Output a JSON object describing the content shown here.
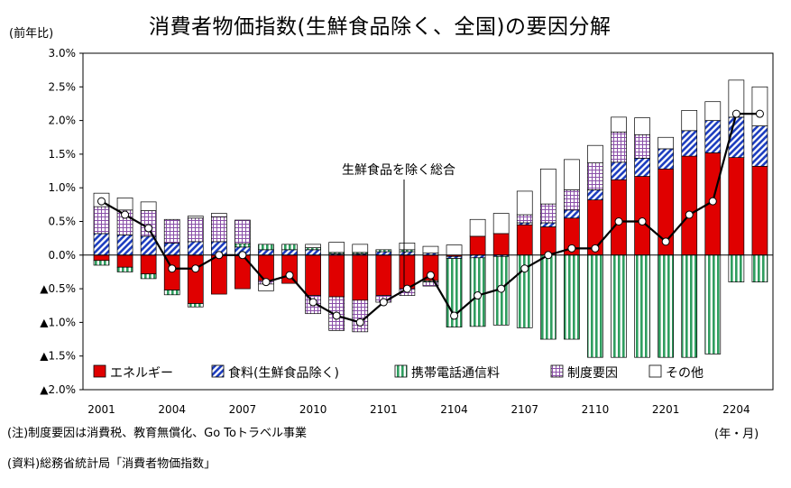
{
  "title": "消費者物価指数(生鮮食品除く、全国)の要因分解",
  "y_unit_label": "(前年比)",
  "x_unit_label": "(年・月)",
  "note": "(注)制度要因は消費税、教育無償化、Go Toトラベル事業",
  "source": "(資料)総務省統計局「消費者物価指数」",
  "annotation": "生鮮食品を除く総合",
  "colors": {
    "energy": "#e00000",
    "food": "#1f3fbf",
    "mobile": "#2f9e5f",
    "policy": "#8a4fa8",
    "other": "#ffffff",
    "line": "#000000"
  },
  "chart_data": {
    "type": "bar",
    "stacked": true,
    "ylim": [
      -2.0,
      3.0
    ],
    "y_ticks": [
      {
        "value": 3.0,
        "label": "3.0%"
      },
      {
        "value": 2.5,
        "label": "2.5%"
      },
      {
        "value": 2.0,
        "label": "2.0%"
      },
      {
        "value": 1.5,
        "label": "1.5%"
      },
      {
        "value": 1.0,
        "label": "1.0%"
      },
      {
        "value": 0.5,
        "label": "0.5%"
      },
      {
        "value": 0.0,
        "label": "0.0%"
      },
      {
        "value": -0.5,
        "label": "▲0.5%"
      },
      {
        "value": -1.0,
        "label": "▲1.0%"
      },
      {
        "value": -1.5,
        "label": "▲1.5%"
      },
      {
        "value": -2.0,
        "label": "▲2.0%"
      }
    ],
    "categories": [
      "2001",
      "2002",
      "2003",
      "2004",
      "2005",
      "2006",
      "2007",
      "2008",
      "2009",
      "2010",
      "2011",
      "2012",
      "2101",
      "2102",
      "2103",
      "2104",
      "2105",
      "2106",
      "2107",
      "2108",
      "2109",
      "2110",
      "2111",
      "2112",
      "2201",
      "2202",
      "2203",
      "2204",
      "2205"
    ],
    "x_tick_labels": [
      {
        "category": "2001",
        "label": "2001"
      },
      {
        "category": "2004",
        "label": "2004"
      },
      {
        "category": "2007",
        "label": "2007"
      },
      {
        "category": "2010",
        "label": "2010"
      },
      {
        "category": "2101",
        "label": "2101"
      },
      {
        "category": "2104",
        "label": "2104"
      },
      {
        "category": "2107",
        "label": "2107"
      },
      {
        "category": "2110",
        "label": "2110"
      },
      {
        "category": "2201",
        "label": "2201"
      },
      {
        "category": "2204",
        "label": "2204"
      }
    ],
    "series": [
      {
        "key": "energy",
        "name": "エネルギー",
        "values": [
          -0.08,
          -0.18,
          -0.28,
          -0.52,
          -0.72,
          -0.58,
          -0.5,
          -0.38,
          -0.42,
          -0.6,
          -0.62,
          -0.67,
          -0.6,
          -0.5,
          -0.38,
          -0.02,
          0.28,
          0.32,
          0.45,
          0.42,
          0.55,
          0.82,
          1.12,
          1.17,
          1.28,
          1.47,
          1.52,
          1.45,
          1.32
        ]
      },
      {
        "key": "food",
        "name": "食料(生鮮食品除く)",
        "values": [
          0.32,
          0.3,
          0.28,
          0.18,
          0.2,
          0.2,
          0.12,
          0.08,
          0.08,
          0.08,
          0.02,
          0.02,
          0.05,
          0.05,
          0.03,
          -0.03,
          -0.04,
          -0.02,
          0.03,
          0.06,
          0.12,
          0.15,
          0.26,
          0.27,
          0.3,
          0.38,
          0.48,
          0.6,
          0.6
        ]
      },
      {
        "key": "mobile",
        "name": "携帯電話通信料",
        "values": [
          -0.07,
          -0.07,
          -0.07,
          -0.07,
          -0.05,
          0.0,
          0.05,
          0.08,
          0.08,
          0.03,
          0.02,
          0.02,
          0.03,
          0.03,
          -0.02,
          -1.02,
          -1.02,
          -1.02,
          -1.08,
          -1.25,
          -1.25,
          -1.52,
          -1.52,
          -1.52,
          -1.52,
          -1.52,
          -1.47,
          -0.4,
          -0.4
        ]
      },
      {
        "key": "policy",
        "name": "制度要因",
        "values": [
          0.4,
          0.37,
          0.38,
          0.35,
          0.35,
          0.37,
          0.35,
          -0.05,
          0.0,
          -0.27,
          -0.5,
          -0.47,
          -0.1,
          -0.1,
          -0.06,
          0.0,
          0.0,
          0.0,
          0.12,
          0.28,
          0.3,
          0.4,
          0.45,
          0.35,
          0.0,
          0.0,
          0.0,
          0.0,
          0.0
        ]
      },
      {
        "key": "other",
        "name": "その他",
        "values": [
          0.2,
          0.18,
          0.13,
          0.0,
          0.03,
          0.05,
          0.0,
          -0.1,
          0.0,
          0.05,
          0.15,
          0.12,
          0.0,
          0.1,
          0.1,
          0.15,
          0.25,
          0.3,
          0.35,
          0.52,
          0.45,
          0.26,
          0.22,
          0.25,
          0.17,
          0.3,
          0.28,
          0.55,
          0.58
        ]
      }
    ],
    "line": {
      "key": "total",
      "name": "生鮮食品を除く総合",
      "values": [
        0.8,
        0.6,
        0.4,
        -0.2,
        -0.2,
        0.0,
        0.0,
        -0.4,
        -0.3,
        -0.7,
        -0.9,
        -1.0,
        -0.7,
        -0.5,
        -0.3,
        -0.9,
        -0.6,
        -0.5,
        -0.2,
        0.0,
        0.1,
        0.1,
        0.5,
        0.5,
        0.2,
        0.6,
        0.8,
        2.1,
        2.1
      ]
    },
    "legend_position": "bottom-inside",
    "grid": false
  }
}
